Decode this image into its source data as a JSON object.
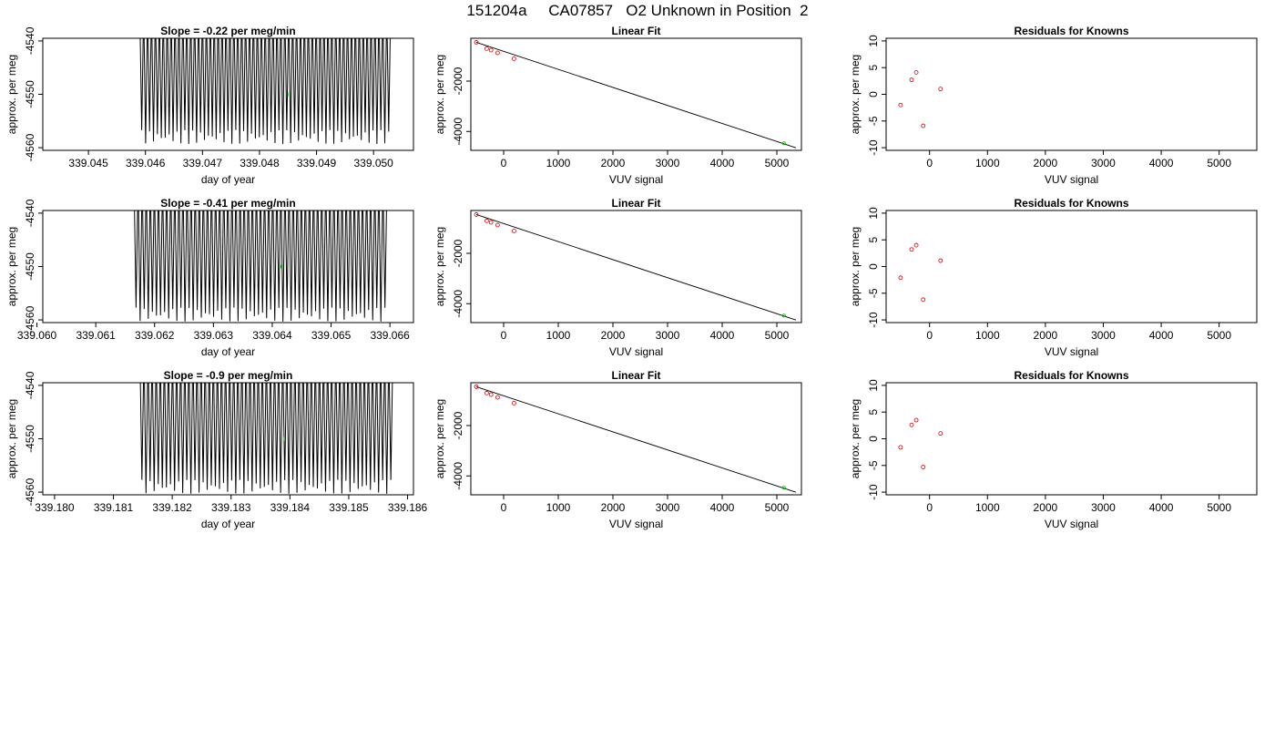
{
  "page_title": "151204a     CA07857   O2 Unknown in Position  2",
  "colors": {
    "trace": "#000000",
    "point_red": "#cc0000",
    "point_green": "#00cc00",
    "axis": "#000000"
  },
  "chart_data": [
    {
      "type": "line",
      "panel": "timeseries",
      "row": 0,
      "title": "Slope =  -0.22  per meg/min",
      "xlabel": "day of year",
      "ylabel": "approx. per meg",
      "xlim": [
        339.0442,
        339.0507
      ],
      "ylim": [
        -4560.5,
        -4539.5
      ],
      "xticks": [
        339.045,
        339.046,
        339.047,
        339.048,
        339.049,
        339.05
      ],
      "xtick_labels": [
        "339.045",
        "339.046",
        "339.047",
        "339.048",
        "339.049",
        "339.050"
      ],
      "yticks": [
        -4540,
        -4550,
        -4560
      ],
      "ytick_labels": [
        "-4540",
        "-4550",
        "-4560"
      ],
      "trace_start": 339.0459,
      "trace_end": 339.0503,
      "oscillations": 64,
      "trace_low": -4558,
      "trace_high": -4539.5,
      "green_point": {
        "x": 339.0485,
        "y": -4550
      }
    },
    {
      "type": "scatter",
      "panel": "linear_fit",
      "row": 0,
      "title": "Linear Fit",
      "xlabel": "VUV signal",
      "ylabel": "approx. per meg",
      "xlim": [
        -600,
        5450
      ],
      "ylim": [
        -4750,
        -300
      ],
      "xticks": [
        0,
        1000,
        2000,
        3000,
        4000,
        5000
      ],
      "xtick_labels": [
        "0",
        "1000",
        "2000",
        "3000",
        "4000",
        "5000"
      ],
      "yticks": [
        -2000,
        -4000
      ],
      "ytick_labels": [
        "-2000",
        "-4000"
      ],
      "line": {
        "x": [
          -500,
          5350
        ],
        "y": [
          -460,
          -4650
        ]
      },
      "knowns": [
        {
          "x": -500,
          "y": -460
        },
        {
          "x": -310,
          "y": -710
        },
        {
          "x": -230,
          "y": -770
        },
        {
          "x": -110,
          "y": -880
        },
        {
          "x": 190,
          "y": -1110
        }
      ],
      "unknown": {
        "x": 5130,
        "y": -4470
      }
    },
    {
      "type": "scatter",
      "panel": "residuals",
      "row": 0,
      "title": "Residuals for Knowns",
      "xlabel": "VUV signal",
      "ylabel": "approx. per meg",
      "xlim": [
        -750,
        5650
      ],
      "ylim": [
        -10.5,
        10.5
      ],
      "xticks": [
        0,
        1000,
        2000,
        3000,
        4000,
        5000
      ],
      "xtick_labels": [
        "0",
        "1000",
        "2000",
        "3000",
        "4000",
        "5000"
      ],
      "yticks": [
        10,
        5,
        0,
        -5,
        -10
      ],
      "ytick_labels": [
        "10",
        "5",
        "0",
        "-5",
        "-10"
      ],
      "points": [
        {
          "x": -500,
          "y": -2
        },
        {
          "x": -310,
          "y": 2.7
        },
        {
          "x": -230,
          "y": 4.1
        },
        {
          "x": -110,
          "y": -5.9
        },
        {
          "x": 190,
          "y": 1
        }
      ]
    },
    {
      "type": "line",
      "panel": "timeseries",
      "row": 1,
      "title": "Slope =  -0.41  per meg/min",
      "xlabel": "day of year",
      "ylabel": "approx. per meg",
      "xlim": [
        339.0601,
        339.0664
      ],
      "ylim": [
        -4560.5,
        -4539.5
      ],
      "xticks": [
        339.06,
        339.061,
        339.062,
        339.063,
        339.064,
        339.065,
        339.066
      ],
      "xtick_labels": [
        "339.060",
        "339.061",
        "339.062",
        "339.063",
        "339.064",
        "339.065",
        "339.066"
      ],
      "yticks": [
        -4540,
        -4550,
        -4560
      ],
      "ytick_labels": [
        "-4540",
        "-4550",
        "-4560"
      ],
      "trace_start": 339.06165,
      "trace_end": 339.06595,
      "oscillations": 62,
      "trace_low": -4559,
      "trace_high": -4539.5,
      "green_point": {
        "x": 339.06415,
        "y": -4550
      }
    },
    {
      "type": "scatter",
      "panel": "linear_fit",
      "row": 1,
      "title": "Linear Fit",
      "xlabel": "VUV signal",
      "ylabel": "approx. per meg",
      "xlim": [
        -600,
        5450
      ],
      "ylim": [
        -4750,
        -300
      ],
      "xticks": [
        0,
        1000,
        2000,
        3000,
        4000,
        5000
      ],
      "xtick_labels": [
        "0",
        "1000",
        "2000",
        "3000",
        "4000",
        "5000"
      ],
      "yticks": [
        -2000,
        -4000
      ],
      "ytick_labels": [
        "-2000",
        "-4000"
      ],
      "line": {
        "x": [
          -500,
          5350
        ],
        "y": [
          -460,
          -4650
        ]
      },
      "knowns": [
        {
          "x": -500,
          "y": -460
        },
        {
          "x": -310,
          "y": -710
        },
        {
          "x": -230,
          "y": -770
        },
        {
          "x": -110,
          "y": -880
        },
        {
          "x": 190,
          "y": -1110
        }
      ],
      "unknown": {
        "x": 5130,
        "y": -4470
      }
    },
    {
      "type": "scatter",
      "panel": "residuals",
      "row": 1,
      "title": "Residuals for Knowns",
      "xlabel": "VUV signal",
      "ylabel": "approx. per meg",
      "xlim": [
        -750,
        5650
      ],
      "ylim": [
        -10.5,
        10.5
      ],
      "xticks": [
        0,
        1000,
        2000,
        3000,
        4000,
        5000
      ],
      "xtick_labels": [
        "0",
        "1000",
        "2000",
        "3000",
        "4000",
        "5000"
      ],
      "yticks": [
        10,
        5,
        0,
        -5,
        -10
      ],
      "ytick_labels": [
        "10",
        "5",
        "0",
        "-5",
        "-10"
      ],
      "points": [
        {
          "x": -500,
          "y": -2.1
        },
        {
          "x": -310,
          "y": 3.2
        },
        {
          "x": -230,
          "y": 4
        },
        {
          "x": -110,
          "y": -6.2
        },
        {
          "x": 190,
          "y": 1.1
        }
      ]
    },
    {
      "type": "line",
      "panel": "timeseries",
      "row": 2,
      "title": "Slope =  -0.9  per meg/min",
      "xlabel": "day of year",
      "ylabel": "approx. per meg",
      "xlim": [
        339.1798,
        339.1861
      ],
      "ylim": [
        -4560.5,
        -4539.5
      ],
      "xticks": [
        339.18,
        339.181,
        339.182,
        339.183,
        339.184,
        339.185,
        339.186
      ],
      "xtick_labels": [
        "339.180",
        "339.181",
        "339.182",
        "339.183",
        "339.184",
        "339.185",
        "339.186"
      ],
      "yticks": [
        -4540,
        -4550,
        -4560
      ],
      "ytick_labels": [
        "-4540",
        "-4550",
        "-4560"
      ],
      "trace_start": 339.18145,
      "trace_end": 339.18575,
      "oscillations": 62,
      "trace_low": -4559,
      "trace_high": -4539.5,
      "green_point": {
        "x": 339.1839,
        "y": -4550
      }
    },
    {
      "type": "scatter",
      "panel": "linear_fit",
      "row": 2,
      "title": "Linear Fit",
      "xlabel": "VUV signal",
      "ylabel": "approx. per meg",
      "xlim": [
        -600,
        5450
      ],
      "ylim": [
        -4750,
        -300
      ],
      "xticks": [
        0,
        1000,
        2000,
        3000,
        4000,
        5000
      ],
      "xtick_labels": [
        "0",
        "1000",
        "2000",
        "3000",
        "4000",
        "5000"
      ],
      "yticks": [
        -2000,
        -4000
      ],
      "ytick_labels": [
        "-2000",
        "-4000"
      ],
      "line": {
        "x": [
          -500,
          5350
        ],
        "y": [
          -460,
          -4650
        ]
      },
      "knowns": [
        {
          "x": -500,
          "y": -460
        },
        {
          "x": -310,
          "y": -710
        },
        {
          "x": -230,
          "y": -770
        },
        {
          "x": -110,
          "y": -880
        },
        {
          "x": 190,
          "y": -1110
        }
      ],
      "unknown": {
        "x": 5130,
        "y": -4470
      }
    },
    {
      "type": "scatter",
      "panel": "residuals",
      "row": 2,
      "title": "Residuals for Knowns",
      "xlabel": "VUV signal",
      "ylabel": "approx. per meg",
      "xlim": [
        -750,
        5650
      ],
      "ylim": [
        -10.5,
        10.5
      ],
      "xticks": [
        0,
        1000,
        2000,
        3000,
        4000,
        5000
      ],
      "xtick_labels": [
        "0",
        "1000",
        "2000",
        "3000",
        "4000",
        "5000"
      ],
      "yticks": [
        10,
        5,
        0,
        -5,
        -10
      ],
      "ytick_labels": [
        "10",
        "5",
        "0",
        "-5",
        "-10"
      ],
      "points": [
        {
          "x": -500,
          "y": -1.6
        },
        {
          "x": -310,
          "y": 2.6
        },
        {
          "x": -230,
          "y": 3.5
        },
        {
          "x": -110,
          "y": -5.3
        },
        {
          "x": 190,
          "y": 1
        }
      ]
    }
  ]
}
